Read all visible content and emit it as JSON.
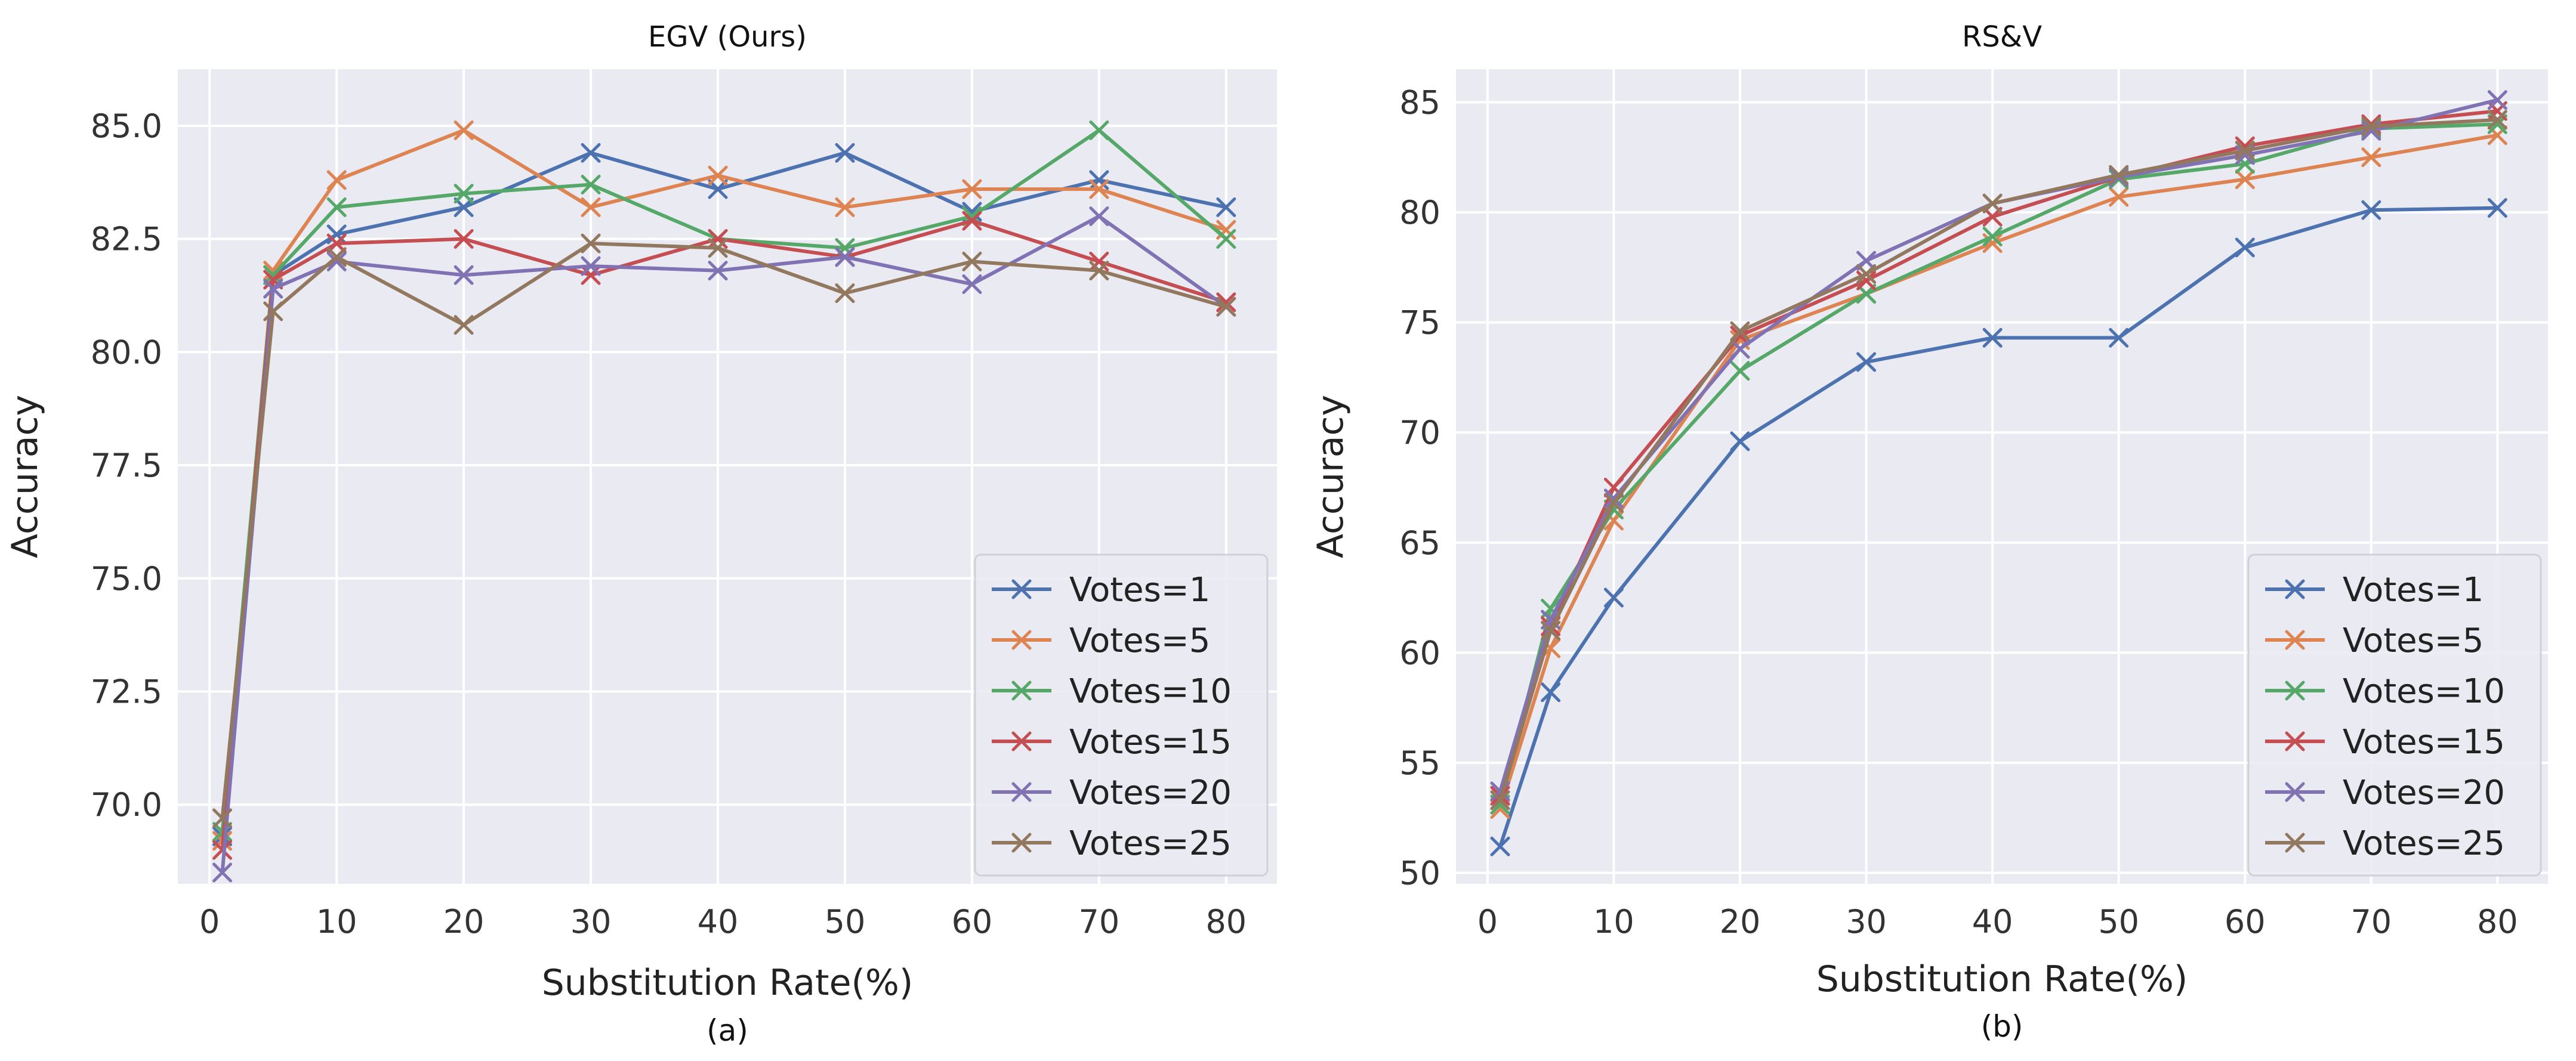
{
  "chart_data": [
    {
      "type": "line",
      "title": "EGV (Ours)",
      "caption": "(a)",
      "xlabel": "Substitution Rate(%)",
      "ylabel": "Accuracy",
      "xlim": [
        -2.5,
        84
      ],
      "ylim": [
        68.25,
        86.25
      ],
      "xticks": [
        0,
        10,
        20,
        30,
        40,
        50,
        60,
        70,
        80
      ],
      "xtick_labels": [
        "0",
        "10",
        "20",
        "30",
        "40",
        "50",
        "60",
        "70",
        "80"
      ],
      "yticks": [
        70.0,
        72.5,
        75.0,
        77.5,
        80.0,
        82.5,
        85.0
      ],
      "ytick_labels": [
        "70.0",
        "72.5",
        "75.0",
        "77.5",
        "80.0",
        "82.5",
        "85.0"
      ],
      "grid": true,
      "legend_position": "lower-right",
      "x": [
        1,
        5,
        10,
        20,
        30,
        40,
        50,
        60,
        70,
        80
      ],
      "series": [
        {
          "name": "Votes=1",
          "color": "#4C72B0",
          "values": [
            69.3,
            81.7,
            82.6,
            83.2,
            84.4,
            83.6,
            84.4,
            83.1,
            83.8,
            83.2
          ]
        },
        {
          "name": "Votes=5",
          "color": "#DD8452",
          "values": [
            69.2,
            81.8,
            83.8,
            84.9,
            83.2,
            83.9,
            83.2,
            83.6,
            83.6,
            82.7
          ]
        },
        {
          "name": "Votes=10",
          "color": "#55A868",
          "values": [
            69.4,
            81.7,
            83.2,
            83.5,
            83.7,
            82.5,
            82.3,
            83.0,
            84.9,
            82.5
          ]
        },
        {
          "name": "Votes=15",
          "color": "#C44E52",
          "values": [
            69.0,
            81.6,
            82.4,
            82.5,
            81.7,
            82.5,
            82.1,
            82.9,
            82.0,
            81.1
          ]
        },
        {
          "name": "Votes=20",
          "color": "#8172B3",
          "values": [
            68.5,
            81.4,
            82.0,
            81.7,
            81.9,
            81.8,
            82.1,
            81.5,
            83.0,
            81.0
          ]
        },
        {
          "name": "Votes=25",
          "color": "#937860",
          "values": [
            69.7,
            80.9,
            82.1,
            80.6,
            82.4,
            82.3,
            81.3,
            82.0,
            81.8,
            81.0
          ]
        }
      ]
    },
    {
      "type": "line",
      "title": "RS&V",
      "caption": "(b)",
      "xlabel": "Substitution Rate(%)",
      "ylabel": "Accuracy",
      "xlim": [
        -2.5,
        84
      ],
      "ylim": [
        49.5,
        86.5
      ],
      "xticks": [
        0,
        10,
        20,
        30,
        40,
        50,
        60,
        70,
        80
      ],
      "xtick_labels": [
        "0",
        "10",
        "20",
        "30",
        "40",
        "50",
        "60",
        "70",
        "80"
      ],
      "yticks": [
        50,
        55,
        60,
        65,
        70,
        75,
        80,
        85
      ],
      "ytick_labels": [
        "50",
        "55",
        "60",
        "65",
        "70",
        "75",
        "80",
        "85"
      ],
      "grid": true,
      "legend_position": "lower-right",
      "x": [
        1,
        5,
        10,
        20,
        30,
        40,
        50,
        60,
        70,
        80
      ],
      "series": [
        {
          "name": "Votes=1",
          "color": "#4C72B0",
          "values": [
            51.2,
            58.2,
            62.5,
            69.6,
            73.2,
            74.3,
            74.3,
            78.4,
            80.1,
            80.2
          ]
        },
        {
          "name": "Votes=5",
          "color": "#DD8452",
          "values": [
            52.9,
            60.2,
            66.0,
            74.2,
            76.3,
            78.6,
            80.7,
            81.5,
            82.5,
            83.5
          ]
        },
        {
          "name": "Votes=10",
          "color": "#55A868",
          "values": [
            53.1,
            62.0,
            66.5,
            72.8,
            76.3,
            78.9,
            81.5,
            82.2,
            83.8,
            84.0
          ]
        },
        {
          "name": "Votes=15",
          "color": "#C44E52",
          "values": [
            53.5,
            61.2,
            67.5,
            74.4,
            76.9,
            79.8,
            81.6,
            83.0,
            84.0,
            84.6
          ]
        },
        {
          "name": "Votes=20",
          "color": "#8172B3",
          "values": [
            53.7,
            61.5,
            67.0,
            73.8,
            77.8,
            80.4,
            81.6,
            82.6,
            83.7,
            85.1
          ]
        },
        {
          "name": "Votes=25",
          "color": "#937860",
          "values": [
            53.3,
            61.0,
            66.8,
            74.6,
            77.2,
            80.4,
            81.7,
            82.8,
            83.9,
            84.2
          ]
        }
      ]
    }
  ]
}
